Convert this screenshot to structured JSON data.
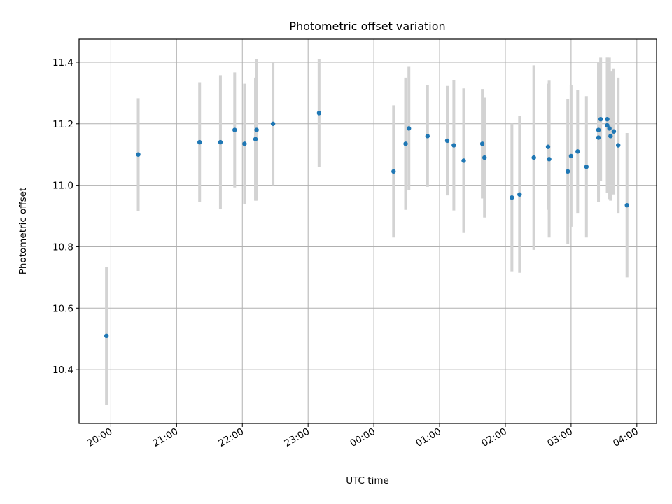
{
  "chart_data": {
    "type": "scatter",
    "title": "Photometric offset variation",
    "xlabel": "UTC time",
    "ylabel": "Photometric offset",
    "x_ticks": [
      "20:00",
      "21:00",
      "22:00",
      "23:00",
      "00:00",
      "01:00",
      "02:00",
      "03:00",
      "04:00"
    ],
    "y_ticks": [
      "10.4",
      "10.6",
      "10.8",
      "11.0",
      "11.2",
      "11.4"
    ],
    "xlim": [
      "19:31",
      "04:18"
    ],
    "ylim": [
      10.225,
      11.475
    ],
    "grid": true,
    "colors": {
      "point": "#1f77b4",
      "errorbar": "#d3d3d3",
      "grid": "#b0b0b0"
    },
    "points": [
      {
        "x": "19:56",
        "y": 10.51,
        "yerr": 0.225
      },
      {
        "x": "20:25",
        "y": 11.1,
        "yerr": 0.183
      },
      {
        "x": "21:21",
        "y": 11.14,
        "yerr": 0.195
      },
      {
        "x": "21:40",
        "y": 11.14,
        "yerr": 0.218
      },
      {
        "x": "21:53",
        "y": 11.18,
        "yerr": 0.187
      },
      {
        "x": "22:02",
        "y": 11.135,
        "yerr": 0.195
      },
      {
        "x": "22:12",
        "y": 11.15,
        "yerr": 0.2
      },
      {
        "x": "22:13",
        "y": 11.18,
        "yerr": 0.23
      },
      {
        "x": "22:28",
        "y": 11.2,
        "yerr": 0.2
      },
      {
        "x": "23:10",
        "y": 11.235,
        "yerr": 0.175
      },
      {
        "x": "00:18",
        "y": 11.045,
        "yerr": 0.215
      },
      {
        "x": "00:29",
        "y": 11.135,
        "yerr": 0.215
      },
      {
        "x": "00:32",
        "y": 11.185,
        "yerr": 0.2
      },
      {
        "x": "00:49",
        "y": 11.16,
        "yerr": 0.165
      },
      {
        "x": "01:07",
        "y": 11.145,
        "yerr": 0.178
      },
      {
        "x": "01:13",
        "y": 11.13,
        "yerr": 0.212
      },
      {
        "x": "01:22",
        "y": 11.08,
        "yerr": 0.235
      },
      {
        "x": "01:39",
        "y": 11.135,
        "yerr": 0.178
      },
      {
        "x": "01:41",
        "y": 11.09,
        "yerr": 0.195
      },
      {
        "x": "02:06",
        "y": 10.96,
        "yerr": 0.24
      },
      {
        "x": "02:13",
        "y": 10.97,
        "yerr": 0.255
      },
      {
        "x": "02:26",
        "y": 11.09,
        "yerr": 0.3
      },
      {
        "x": "02:39",
        "y": 11.125,
        "yerr": 0.205
      },
      {
        "x": "02:40",
        "y": 11.085,
        "yerr": 0.255
      },
      {
        "x": "02:57",
        "y": 11.045,
        "yerr": 0.235
      },
      {
        "x": "03:00",
        "y": 11.095,
        "yerr": 0.23
      },
      {
        "x": "03:06",
        "y": 11.11,
        "yerr": 0.2
      },
      {
        "x": "03:14",
        "y": 11.06,
        "yerr": 0.23
      },
      {
        "x": "03:25",
        "y": 11.155,
        "yerr": 0.21
      },
      {
        "x": "03:25",
        "y": 11.18,
        "yerr": 0.22
      },
      {
        "x": "03:27",
        "y": 11.215,
        "yerr": 0.2
      },
      {
        "x": "03:33",
        "y": 11.215,
        "yerr": 0.2
      },
      {
        "x": "03:33",
        "y": 11.195,
        "yerr": 0.22
      },
      {
        "x": "03:35",
        "y": 11.185,
        "yerr": 0.23
      },
      {
        "x": "03:36",
        "y": 11.16,
        "yerr": 0.21
      },
      {
        "x": "03:39",
        "y": 11.175,
        "yerr": 0.205
      },
      {
        "x": "03:43",
        "y": 11.13,
        "yerr": 0.22
      },
      {
        "x": "03:51",
        "y": 10.935,
        "yerr": 0.235
      }
    ]
  }
}
